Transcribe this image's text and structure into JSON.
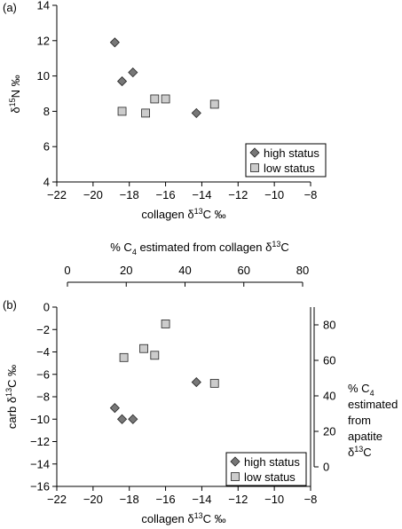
{
  "chart_data": [
    {
      "type": "scatter",
      "panel_label": "(a)",
      "xlabel": "collagen δ13C ‰",
      "ylabel": "δ15N ‰",
      "xlim": [
        -22,
        -8
      ],
      "ylim": [
        4,
        14
      ],
      "xticks": [
        -22,
        -20,
        -18,
        -16,
        -14,
        -12,
        -10,
        -8
      ],
      "yticks": [
        4,
        6,
        8,
        10,
        12,
        14
      ],
      "legend_position": "bottom-right",
      "series": [
        {
          "name": "high status",
          "marker": "diamond",
          "color": "#777777",
          "points": [
            {
              "x": -18.8,
              "y": 11.9
            },
            {
              "x": -17.8,
              "y": 10.2
            },
            {
              "x": -18.4,
              "y": 9.7
            },
            {
              "x": -14.3,
              "y": 7.9
            }
          ]
        },
        {
          "name": "low status",
          "marker": "square",
          "color": "#cccccc",
          "points": [
            {
              "x": -18.4,
              "y": 8.0
            },
            {
              "x": -17.1,
              "y": 7.9
            },
            {
              "x": -16.6,
              "y": 8.7
            },
            {
              "x": -16.0,
              "y": 8.7
            },
            {
              "x": -13.3,
              "y": 8.4
            }
          ]
        }
      ]
    },
    {
      "type": "scatter",
      "panel_label": "(b)",
      "xlabel": "collagen δ13C ‰",
      "ylabel": "carb δ13C ‰",
      "xlim": [
        -22,
        -8
      ],
      "ylim": [
        -16,
        0
      ],
      "xticks": [
        -22,
        -20,
        -18,
        -16,
        -14,
        -12,
        -10,
        -8
      ],
      "yticks": [
        0,
        -2,
        -4,
        -6,
        -8,
        -10,
        -12,
        -14,
        -16
      ],
      "top_axis": {
        "label": "% C4 estimated from collagen δ13C",
        "range": [
          0,
          80
        ],
        "ticks": [
          0,
          20,
          40,
          60,
          80
        ]
      },
      "right_axis": {
        "label_lines": [
          "% C4",
          "estimated",
          "from",
          "apatite",
          "δ13C"
        ],
        "range": [
          0,
          80
        ],
        "ticks": [
          0,
          20,
          40,
          60,
          80
        ]
      },
      "legend_position": "bottom-right",
      "series": [
        {
          "name": "high status",
          "marker": "diamond",
          "color": "#777777",
          "points": [
            {
              "x": -18.8,
              "y": -9.0
            },
            {
              "x": -18.4,
              "y": -10.0
            },
            {
              "x": -17.8,
              "y": -10.0
            },
            {
              "x": -14.3,
              "y": -6.7
            }
          ]
        },
        {
          "name": "low status",
          "marker": "square",
          "color": "#cccccc",
          "points": [
            {
              "x": -18.3,
              "y": -4.5
            },
            {
              "x": -17.2,
              "y": -3.7
            },
            {
              "x": -16.6,
              "y": -4.3
            },
            {
              "x": -16.0,
              "y": -1.5
            },
            {
              "x": -13.3,
              "y": -6.8
            }
          ]
        }
      ]
    }
  ]
}
